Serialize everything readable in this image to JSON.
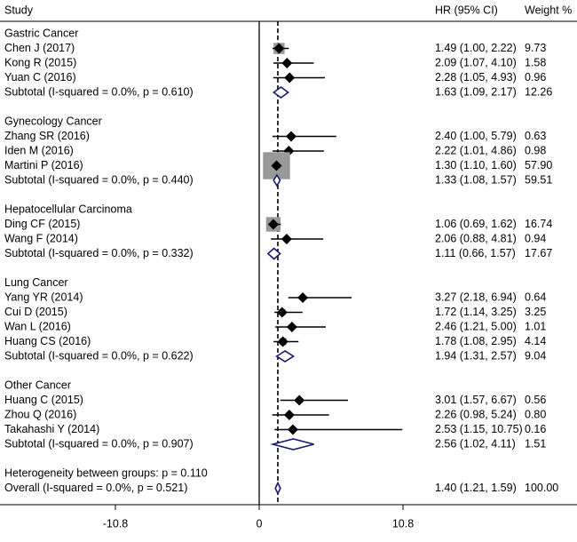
{
  "chart_data": {
    "type": "forest",
    "headers": {
      "study": "Study",
      "hr": "HR (95% CI)",
      "weight": "Weight %"
    },
    "x_axis": {
      "ticks": [
        -10.8,
        0,
        10.8
      ],
      "tick_labels": [
        "-10.8",
        "0",
        "10.8"
      ],
      "range": [
        -19.7,
        24.3
      ],
      "null_line": 0,
      "overall_line": 1.4
    },
    "subgroups": [
      {
        "title": "Gastric Cancer",
        "studies": [
          {
            "label": "Chen J (2017)",
            "hr": 1.49,
            "lo": 1.0,
            "hi": 2.22,
            "weight": 9.73,
            "hr_text": "1.49 (1.00, 2.22)",
            "weight_text": "9.73"
          },
          {
            "label": "Kong R (2015)",
            "hr": 2.09,
            "lo": 1.07,
            "hi": 4.1,
            "weight": 1.58,
            "hr_text": "2.09 (1.07, 4.10)",
            "weight_text": "1.58"
          },
          {
            "label": "Yuan C (2016)",
            "hr": 2.28,
            "lo": 1.05,
            "hi": 4.93,
            "weight": 0.96,
            "hr_text": "2.28 (1.05, 4.93)",
            "weight_text": "0.96"
          }
        ],
        "subtotal": {
          "label": "Subtotal  (I-squared = 0.0%, p = 0.610)",
          "hr": 1.63,
          "lo": 1.09,
          "hi": 2.17,
          "hr_text": "1.63 (1.09, 2.17)",
          "weight_text": "12.26"
        }
      },
      {
        "title": "Gynecology Cancer",
        "studies": [
          {
            "label": "Zhang SR (2016)",
            "hr": 2.4,
            "lo": 1.0,
            "hi": 5.79,
            "weight": 0.63,
            "hr_text": "2.40 (1.00, 5.79)",
            "weight_text": "0.63"
          },
          {
            "label": "Iden M (2016)",
            "hr": 2.22,
            "lo": 1.01,
            "hi": 4.86,
            "weight": 0.98,
            "hr_text": "2.22 (1.01, 4.86)",
            "weight_text": "0.98"
          },
          {
            "label": "Martini P (2016)",
            "hr": 1.3,
            "lo": 1.1,
            "hi": 1.6,
            "weight": 57.9,
            "hr_text": "1.30 (1.10, 1.60)",
            "weight_text": "57.90"
          }
        ],
        "subtotal": {
          "label": "Subtotal  (I-squared = 0.0%, p = 0.440)",
          "hr": 1.33,
          "lo": 1.08,
          "hi": 1.57,
          "hr_text": "1.33 (1.08, 1.57)",
          "weight_text": "59.51"
        }
      },
      {
        "title": "Hepatocellular Carcinoma",
        "studies": [
          {
            "label": "Ding CF (2015)",
            "hr": 1.06,
            "lo": 0.69,
            "hi": 1.62,
            "weight": 16.74,
            "hr_text": "1.06 (0.69, 1.62)",
            "weight_text": "16.74"
          },
          {
            "label": "Wang F (2014)",
            "hr": 2.06,
            "lo": 0.88,
            "hi": 4.81,
            "weight": 0.94,
            "hr_text": "2.06 (0.88, 4.81)",
            "weight_text": "0.94"
          }
        ],
        "subtotal": {
          "label": "Subtotal  (I-squared = 0.0%, p = 0.332)",
          "hr": 1.11,
          "lo": 0.66,
          "hi": 1.57,
          "hr_text": "1.11 (0.66, 1.57)",
          "weight_text": "17.67"
        }
      },
      {
        "title": "Lung Cancer",
        "studies": [
          {
            "label": "Yang YR (2014)",
            "hr": 3.27,
            "lo": 2.18,
            "hi": 6.94,
            "weight": 0.64,
            "hr_text": "3.27 (2.18, 6.94)",
            "weight_text": "0.64"
          },
          {
            "label": "Cui D (2015)",
            "hr": 1.72,
            "lo": 1.14,
            "hi": 3.25,
            "weight": 3.25,
            "hr_text": "1.72 (1.14, 3.25)",
            "weight_text": "3.25"
          },
          {
            "label": "Wan L (2016)",
            "hr": 2.46,
            "lo": 1.21,
            "hi": 5.0,
            "weight": 1.01,
            "hr_text": "2.46 (1.21, 5.00)",
            "weight_text": "1.01"
          },
          {
            "label": "Huang CS (2016)",
            "hr": 1.78,
            "lo": 1.08,
            "hi": 2.95,
            "weight": 4.14,
            "hr_text": "1.78 (1.08, 2.95)",
            "weight_text": "4.14"
          }
        ],
        "subtotal": {
          "label": "Subtotal  (I-squared = 0.0%, p = 0.622)",
          "hr": 1.94,
          "lo": 1.31,
          "hi": 2.57,
          "hr_text": "1.94 (1.31, 2.57)",
          "weight_text": "9.04"
        }
      },
      {
        "title": "Other Cancer",
        "studies": [
          {
            "label": "Huang C (2015)",
            "hr": 3.01,
            "lo": 1.57,
            "hi": 6.67,
            "weight": 0.56,
            "hr_text": "3.01 (1.57, 6.67)",
            "weight_text": "0.56"
          },
          {
            "label": "Zhou Q (2016)",
            "hr": 2.26,
            "lo": 0.98,
            "hi": 5.24,
            "weight": 0.8,
            "hr_text": "2.26 (0.98, 5.24)",
            "weight_text": "0.80"
          },
          {
            "label": "Takahashi Y (2014)",
            "hr": 2.53,
            "lo": 1.15,
            "hi": 10.75,
            "weight": 0.16,
            "hr_text": "2.53 (1.15, 10.75)",
            "weight_text": "0.16"
          }
        ],
        "subtotal": {
          "label": "Subtotal  (I-squared = 0.0%, p = 0.907)",
          "hr": 2.56,
          "lo": 1.02,
          "hi": 4.11,
          "hr_text": "2.56 (1.02, 4.11)",
          "weight_text": "1.51"
        }
      }
    ],
    "heterogeneity": "Heterogeneity between groups: p = 0.110",
    "overall": {
      "label": "Overall  (I-squared = 0.0%, p = 0.521)",
      "hr": 1.4,
      "lo": 1.21,
      "hi": 1.59,
      "hr_text": "1.40 (1.21, 1.59)",
      "weight_text": "100.00"
    }
  }
}
